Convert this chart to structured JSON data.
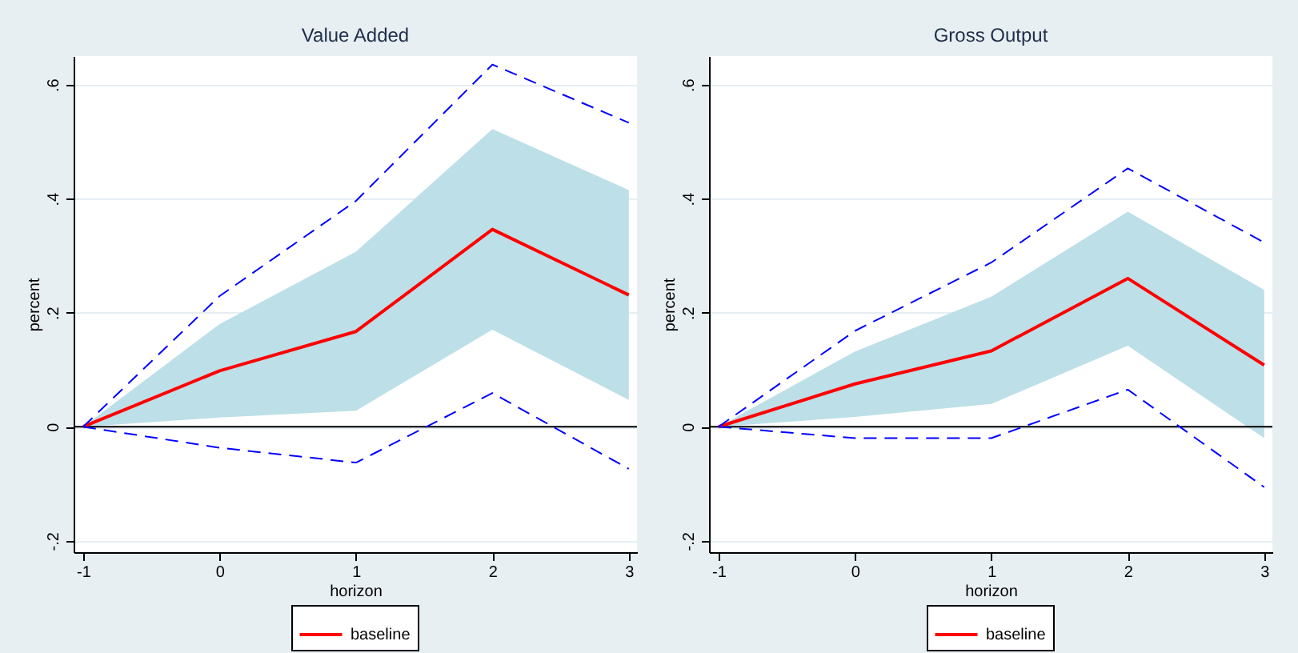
{
  "chart_data": [
    {
      "type": "line",
      "title": "Value Added",
      "xlabel": "horizon",
      "ylabel": "percent",
      "x": [
        -1,
        0,
        1,
        2,
        3
      ],
      "xlim": [
        -1.07,
        3.06
      ],
      "xticks": [
        -1,
        0,
        1,
        2,
        3
      ],
      "ylim": [
        -0.22,
        0.65
      ],
      "yticks": [
        {
          "value": -0.2,
          "label": "-.2"
        },
        {
          "value": 0,
          "label": "0"
        },
        {
          "value": 0.2,
          "label": ".2"
        },
        {
          "value": 0.4,
          "label": ".4"
        },
        {
          "value": 0.6,
          "label": ".6"
        }
      ],
      "grid": "y",
      "legend": "bottom",
      "ref_lines": [
        {
          "axis": "y",
          "value": 0,
          "color": "#000000"
        }
      ],
      "series": [
        {
          "name": "baseline",
          "color": "#ff0000",
          "values": [
            0,
            0.098,
            0.167,
            0.346,
            0.231
          ],
          "lower": [
            0,
            0.016,
            0.028,
            0.17,
            0.047
          ],
          "upper": [
            0,
            0.18,
            0.307,
            0.522,
            0.415
          ]
        },
        {
          "color": "#0000ff",
          "line_style": "dashed",
          "values": [
            0,
            0.229,
            0.396,
            0.635,
            0.533
          ]
        },
        {
          "color": "#0000ff",
          "line_style": "dashed",
          "values": [
            0,
            -0.037,
            -0.063,
            0.059,
            -0.074
          ]
        }
      ]
    },
    {
      "type": "line",
      "title": "Gross Output",
      "xlabel": "horizon",
      "ylabel": "percent",
      "x": [
        -1,
        0,
        1,
        2,
        3
      ],
      "xlim": [
        -1.07,
        3.06
      ],
      "xticks": [
        -1,
        0,
        1,
        2,
        3
      ],
      "ylim": [
        -0.22,
        0.65
      ],
      "yticks": [
        {
          "value": -0.2,
          "label": "-.2"
        },
        {
          "value": 0,
          "label": "0"
        },
        {
          "value": 0.2,
          "label": ".2"
        },
        {
          "value": 0.4,
          "label": ".4"
        },
        {
          "value": 0.6,
          "label": ".6"
        }
      ],
      "grid": "y",
      "legend": "bottom",
      "ref_lines": [
        {
          "axis": "y",
          "value": 0,
          "color": "#000000"
        }
      ],
      "series": [
        {
          "name": "baseline",
          "color": "#ff0000",
          "values": [
            0,
            0.075,
            0.133,
            0.26,
            0.108
          ],
          "lower": [
            0,
            0.017,
            0.04,
            0.142,
            -0.02
          ],
          "upper": [
            0,
            0.132,
            0.228,
            0.377,
            0.24
          ]
        },
        {
          "color": "#0000ff",
          "line_style": "dashed",
          "values": [
            0,
            0.168,
            0.288,
            0.453,
            0.323
          ]
        },
        {
          "color": "#0000ff",
          "line_style": "dashed",
          "values": [
            0,
            -0.02,
            -0.02,
            0.065,
            -0.106
          ]
        }
      ]
    }
  ]
}
